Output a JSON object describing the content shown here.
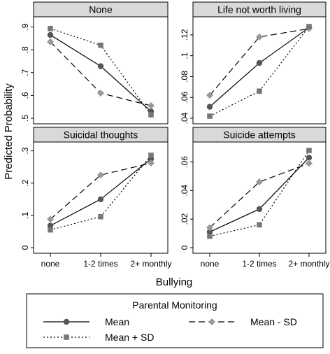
{
  "chart_data": {
    "type": "line",
    "ylabel": "Predicted Probability",
    "xlabel": "Bullying",
    "categories": [
      "none",
      "1-2 times",
      "2+ monthly"
    ],
    "legend": {
      "title": "Parental Monitoring",
      "placement": "bottom"
    },
    "series_styles": [
      {
        "name": "Mean",
        "line": "solid",
        "marker": "circle",
        "color": "#555555"
      },
      {
        "name": "Mean - SD",
        "line": "dashed",
        "marker": "diamond",
        "color": "#999999"
      },
      {
        "name": "Mean + SD",
        "line": "dotted",
        "marker": "square",
        "color": "#777777"
      }
    ],
    "panels": [
      {
        "title": "None",
        "ylim": [
          0.5,
          0.92
        ],
        "yticks": [
          0.5,
          0.6,
          0.7,
          0.8,
          0.9
        ],
        "ytick_labels": [
          ".5",
          ".6",
          ".7",
          ".8",
          ".9"
        ],
        "series": [
          {
            "name": "Mean",
            "values": [
              0.865,
              0.728,
              0.53
            ]
          },
          {
            "name": "Mean - SD",
            "values": [
              0.835,
              0.61,
              0.555
            ]
          },
          {
            "name": "Mean + SD",
            "values": [
              0.893,
              0.82,
              0.515
            ]
          }
        ]
      },
      {
        "title": "Life not worth living",
        "ylim": [
          0.04,
          0.132
        ],
        "yticks": [
          0.04,
          0.06,
          0.08,
          0.1,
          0.12
        ],
        "ytick_labels": [
          ".04",
          ".06",
          ".08",
          ".1",
          ".12"
        ],
        "series": [
          {
            "name": "Mean",
            "values": [
              0.051,
              0.093,
              0.127
            ]
          },
          {
            "name": "Mean - SD",
            "values": [
              0.062,
              0.118,
              0.126
            ]
          },
          {
            "name": "Mean + SD",
            "values": [
              0.042,
              0.066,
              0.128
            ]
          }
        ]
      },
      {
        "title": "Suicidal thoughts",
        "ylim": [
          0,
          0.31
        ],
        "yticks": [
          0,
          0.1,
          0.2,
          0.3
        ],
        "ytick_labels": [
          "0",
          ".1",
          ".2",
          ".3"
        ],
        "series": [
          {
            "name": "Mean",
            "values": [
              0.068,
              0.15,
              0.275
            ]
          },
          {
            "name": "Mean - SD",
            "values": [
              0.088,
              0.225,
              0.262
            ]
          },
          {
            "name": "Mean + SD",
            "values": [
              0.055,
              0.096,
              0.286
            ]
          }
        ]
      },
      {
        "title": "Suicide attempts",
        "ylim": [
          0,
          0.07
        ],
        "yticks": [
          0,
          0.02,
          0.04,
          0.06
        ],
        "ytick_labels": [
          "0",
          ".02",
          ".04",
          ".06"
        ],
        "series": [
          {
            "name": "Mean",
            "values": [
              0.011,
              0.027,
              0.063
            ]
          },
          {
            "name": "Mean - SD",
            "values": [
              0.014,
              0.046,
              0.059
            ]
          },
          {
            "name": "Mean + SD",
            "values": [
              0.008,
              0.016,
              0.068
            ]
          }
        ]
      }
    ]
  }
}
